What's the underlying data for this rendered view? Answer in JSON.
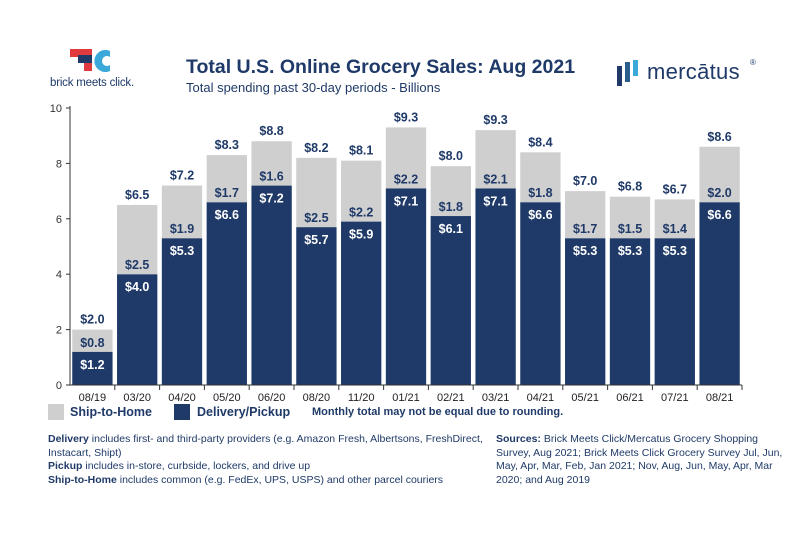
{
  "brand": {
    "left_logo_text": "brick meets click.",
    "right_logo_text": "mercātus",
    "right_logo_mark": "®"
  },
  "header": {
    "title": "Total U.S. Online Grocery Sales: Aug 2021",
    "subtitle": "Total spending past 30-day periods - Billions"
  },
  "colors": {
    "ship_to_home": "#cfcfcf",
    "delivery_pickup": "#1f3a68",
    "text": "#1f3a68",
    "brand_red": "#e03a3e"
  },
  "legend": {
    "ship_label": "Ship-to-Home",
    "delivery_label": "Delivery/Pickup",
    "note": "Monthly total may not be equal due to rounding."
  },
  "notes": {
    "delivery_term": "Delivery",
    "delivery_text": " includes first- and third-party providers (e.g. Amazon Fresh, Albertsons, FreshDirect, Instacart, Shipt)",
    "pickup_term": "Pickup",
    "pickup_text": " includes in-store, curbside, lockers, and drive up",
    "ship_term": "Ship-to-Home",
    "ship_text": " includes common (e.g. FedEx, UPS, USPS) and other parcel couriers"
  },
  "sources": {
    "label": "Sources:",
    "text": " Brick Meets Click/Mercatus Grocery Shopping Survey, Aug 2021; Brick Meets Click Grocery Survey Jul, Jun, May, Apr, Mar, Feb, Jan 2021; Nov, Aug, Jun, May, Apr, Mar 2020; and Aug 2019"
  },
  "chart_data": {
    "type": "bar",
    "stacked": true,
    "categories": [
      "08/19",
      "03/20",
      "04/20",
      "05/20",
      "06/20",
      "08/20",
      "11/20",
      "01/21",
      "02/21",
      "03/21",
      "04/21",
      "05/21",
      "06/21",
      "07/21",
      "08/21"
    ],
    "series": [
      {
        "name": "Delivery/Pickup",
        "values": [
          1.2,
          4.0,
          5.3,
          6.6,
          7.2,
          5.7,
          5.9,
          7.1,
          6.1,
          7.1,
          6.6,
          5.3,
          5.3,
          5.3,
          6.6
        ],
        "labels": [
          "$1.2",
          "$4.0",
          "$5.3",
          "$6.6",
          "$7.2",
          "$5.7",
          "$5.9",
          "$7.1",
          "$6.1",
          "$7.1",
          "$6.6",
          "$5.3",
          "$5.3",
          "$5.3",
          "$6.6"
        ]
      },
      {
        "name": "Ship-to-Home",
        "values": [
          0.8,
          2.5,
          1.9,
          1.7,
          1.6,
          2.5,
          2.2,
          2.2,
          1.8,
          2.1,
          1.8,
          1.7,
          1.5,
          1.4,
          2.0
        ],
        "labels": [
          "$0.8",
          "$2.5",
          "$1.9",
          "$1.7",
          "$1.6",
          "$2.5",
          "$2.2",
          "$2.2",
          "$1.8",
          "$2.1",
          "$1.8",
          "$1.7",
          "$1.5",
          "$1.4",
          "$2.0"
        ]
      }
    ],
    "totals": [
      2.0,
      6.5,
      7.2,
      8.3,
      8.8,
      8.2,
      8.1,
      9.3,
      8.0,
      9.3,
      8.4,
      7.0,
      6.8,
      6.7,
      8.6
    ],
    "total_labels": [
      "$2.0",
      "$6.5",
      "$7.2",
      "$8.3",
      "$8.8",
      "$8.2",
      "$8.1",
      "$9.3",
      "$8.0",
      "$9.3",
      "$8.4",
      "$7.0",
      "$6.8",
      "$6.7",
      "$8.6"
    ],
    "yticks": [
      "0",
      "2",
      "4",
      "6",
      "8",
      "10"
    ],
    "ylim": [
      0,
      10
    ],
    "grid": false,
    "legend_position": "bottom-left"
  }
}
